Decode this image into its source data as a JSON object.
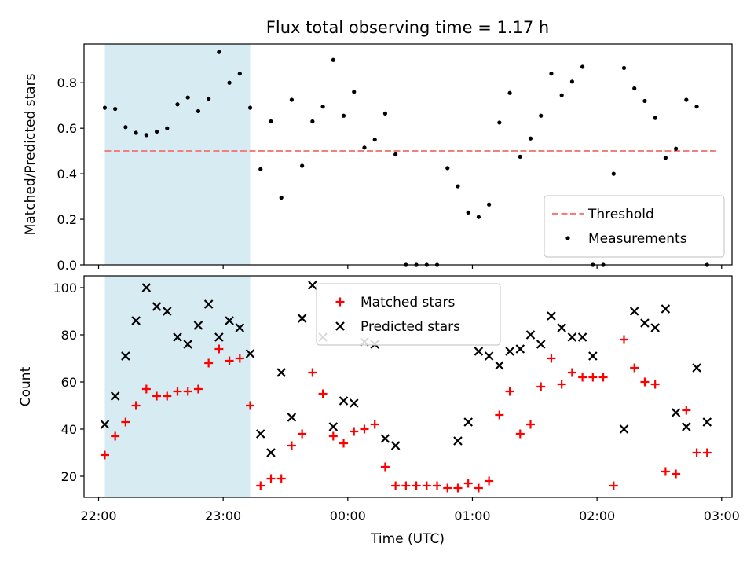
{
  "chart_data": {
    "title": "Flux total observing time = 1.17 h",
    "xlabel": "Time (UTC)",
    "xlim": [
      "21:53",
      "03:05"
    ],
    "x_ticks": [
      "22:00",
      "23:00",
      "00:00",
      "01:00",
      "02:00",
      "03:00"
    ],
    "highlight_span": {
      "start": "22:03",
      "end": "23:13",
      "color": "#add8e6"
    },
    "panels": [
      {
        "type": "scatter",
        "ylabel": "Matched/Predicted stars",
        "ylim": [
          0,
          0.97
        ],
        "y_ticks": [
          "0.0",
          "0.2",
          "0.4",
          "0.6",
          "0.8"
        ],
        "legend_position": "lower-right",
        "threshold": {
          "name": "Threshold",
          "value": 0.5,
          "x_range": [
            "22:03",
            "02:57"
          ],
          "color": "#f08080"
        },
        "series": [
          {
            "name": "Measurements",
            "color": "#000000",
            "marker": "dot",
            "points": [
              [
                "22:03",
                0.69
              ],
              [
                "22:08",
                0.685
              ],
              [
                "22:13",
                0.605
              ],
              [
                "22:18",
                0.58
              ],
              [
                "22:23",
                0.57
              ],
              [
                "22:28",
                0.585
              ],
              [
                "22:33",
                0.6
              ],
              [
                "22:38",
                0.705
              ],
              [
                "22:43",
                0.735
              ],
              [
                "22:48",
                0.675
              ],
              [
                "22:53",
                0.73
              ],
              [
                "22:58",
                0.935
              ],
              [
                "23:03",
                0.8
              ],
              [
                "23:08",
                0.84
              ],
              [
                "23:13",
                0.69
              ],
              [
                "23:18",
                0.42
              ],
              [
                "23:23",
                0.63
              ],
              [
                "23:28",
                0.295
              ],
              [
                "23:33",
                0.725
              ],
              [
                "23:38",
                0.435
              ],
              [
                "23:43",
                0.63
              ],
              [
                "23:48",
                0.695
              ],
              [
                "23:53",
                0.9
              ],
              [
                "23:58",
                0.655
              ],
              [
                "00:03",
                0.76
              ],
              [
                "00:08",
                0.515
              ],
              [
                "00:13",
                0.55
              ],
              [
                "00:18",
                0.665
              ],
              [
                "00:23",
                0.485
              ],
              [
                "00:28",
                0.0
              ],
              [
                "00:33",
                0.0
              ],
              [
                "00:38",
                0.0
              ],
              [
                "00:43",
                0.0
              ],
              [
                "00:48",
                0.425
              ],
              [
                "00:53",
                0.345
              ],
              [
                "00:58",
                0.23
              ],
              [
                "01:03",
                0.21
              ],
              [
                "01:08",
                0.265
              ],
              [
                "01:13",
                0.625
              ],
              [
                "01:18",
                0.755
              ],
              [
                "01:23",
                0.475
              ],
              [
                "01:28",
                0.555
              ],
              [
                "01:33",
                0.655
              ],
              [
                "01:38",
                0.84
              ],
              [
                "01:43",
                0.745
              ],
              [
                "01:48",
                0.805
              ],
              [
                "01:53",
                0.87
              ],
              [
                "01:58",
                0.0
              ],
              [
                "02:03",
                0.0
              ],
              [
                "02:08",
                0.4
              ],
              [
                "02:13",
                0.865
              ],
              [
                "02:18",
                0.775
              ],
              [
                "02:23",
                0.72
              ],
              [
                "02:28",
                0.645
              ],
              [
                "02:33",
                0.47
              ],
              [
                "02:38",
                0.51
              ],
              [
                "02:43",
                0.725
              ],
              [
                "02:48",
                0.695
              ],
              [
                "02:53",
                0.0
              ]
            ]
          }
        ]
      },
      {
        "type": "scatter",
        "ylabel": "Count",
        "ylim": [
          11,
          105
        ],
        "y_ticks": [
          "20",
          "40",
          "60",
          "80",
          "100"
        ],
        "legend_position": "top-center",
        "series": [
          {
            "name": "Matched stars",
            "color": "#ff0000",
            "marker": "plus",
            "points": [
              [
                "22:03",
                29
              ],
              [
                "22:08",
                37
              ],
              [
                "22:13",
                43
              ],
              [
                "22:18",
                50
              ],
              [
                "22:23",
                57
              ],
              [
                "22:28",
                54
              ],
              [
                "22:33",
                54
              ],
              [
                "22:38",
                56
              ],
              [
                "22:43",
                56
              ],
              [
                "22:48",
                57
              ],
              [
                "22:53",
                68
              ],
              [
                "22:58",
                74
              ],
              [
                "23:03",
                69
              ],
              [
                "23:08",
                70
              ],
              [
                "23:13",
                50
              ],
              [
                "23:18",
                16
              ],
              [
                "23:23",
                19
              ],
              [
                "23:28",
                19
              ],
              [
                "23:33",
                33
              ],
              [
                "23:38",
                38
              ],
              [
                "23:43",
                64
              ],
              [
                "23:48",
                55
              ],
              [
                "23:53",
                37
              ],
              [
                "23:58",
                34
              ],
              [
                "00:03",
                39
              ],
              [
                "00:08",
                40
              ],
              [
                "00:13",
                42
              ],
              [
                "00:18",
                24
              ],
              [
                "00:23",
                16
              ],
              [
                "00:28",
                16
              ],
              [
                "00:33",
                16
              ],
              [
                "00:38",
                16
              ],
              [
                "00:43",
                16
              ],
              [
                "00:48",
                15
              ],
              [
                "00:53",
                15
              ],
              [
                "00:58",
                17
              ],
              [
                "01:03",
                15
              ],
              [
                "01:08",
                18
              ],
              [
                "01:13",
                46
              ],
              [
                "01:18",
                56
              ],
              [
                "01:23",
                38
              ],
              [
                "01:28",
                42
              ],
              [
                "01:33",
                58
              ],
              [
                "01:38",
                70
              ],
              [
                "01:43",
                59
              ],
              [
                "01:48",
                64
              ],
              [
                "01:53",
                62
              ],
              [
                "01:58",
                62
              ],
              [
                "02:03",
                62
              ],
              [
                "02:08",
                16
              ],
              [
                "02:13",
                78
              ],
              [
                "02:18",
                66
              ],
              [
                "02:23",
                60
              ],
              [
                "02:28",
                59
              ],
              [
                "02:33",
                22
              ],
              [
                "02:38",
                21
              ],
              [
                "02:43",
                48
              ],
              [
                "02:48",
                30
              ],
              [
                "02:53",
                30
              ]
            ]
          },
          {
            "name": "Predicted stars",
            "color": "#000000",
            "marker": "x",
            "points": [
              [
                "22:03",
                42
              ],
              [
                "22:08",
                54
              ],
              [
                "22:13",
                71
              ],
              [
                "22:18",
                86
              ],
              [
                "22:23",
                100
              ],
              [
                "22:28",
                92
              ],
              [
                "22:33",
                90
              ],
              [
                "22:38",
                79
              ],
              [
                "22:43",
                76
              ],
              [
                "22:48",
                84
              ],
              [
                "22:53",
                93
              ],
              [
                "22:58",
                79
              ],
              [
                "23:03",
                86
              ],
              [
                "23:08",
                83
              ],
              [
                "23:13",
                72
              ],
              [
                "23:18",
                38
              ],
              [
                "23:23",
                30
              ],
              [
                "23:28",
                64
              ],
              [
                "23:33",
                45
              ],
              [
                "23:38",
                87
              ],
              [
                "23:43",
                101
              ],
              [
                "23:48",
                79
              ],
              [
                "23:53",
                41
              ],
              [
                "23:58",
                52
              ],
              [
                "00:03",
                51
              ],
              [
                "00:08",
                77
              ],
              [
                "00:13",
                76
              ],
              [
                "00:18",
                36
              ],
              [
                "00:23",
                33
              ],
              [
                "00:53",
                35
              ],
              [
                "00:58",
                43
              ],
              [
                "01:03",
                73
              ],
              [
                "01:08",
                71
              ],
              [
                "01:13",
                67
              ],
              [
                "01:18",
                73
              ],
              [
                "01:23",
                74
              ],
              [
                "01:28",
                80
              ],
              [
                "01:33",
                76
              ],
              [
                "01:38",
                88
              ],
              [
                "01:43",
                83
              ],
              [
                "01:48",
                79
              ],
              [
                "01:53",
                79
              ],
              [
                "01:58",
                71
              ],
              [
                "02:13",
                40
              ],
              [
                "02:18",
                90
              ],
              [
                "02:23",
                85
              ],
              [
                "02:28",
                83
              ],
              [
                "02:33",
                91
              ],
              [
                "02:38",
                47
              ],
              [
                "02:43",
                41
              ],
              [
                "02:48",
                66
              ],
              [
                "02:53",
                43
              ]
            ]
          }
        ]
      }
    ]
  }
}
